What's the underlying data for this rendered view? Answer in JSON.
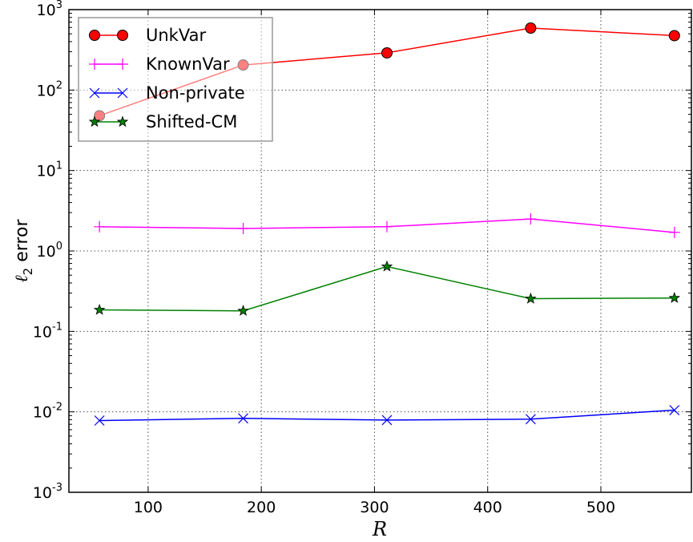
{
  "chart_data": {
    "type": "line",
    "xlabel": "R",
    "ylabel_main": "ℓ",
    "ylabel_sub": "2",
    "ylabel_rest": " error",
    "yscale": "log",
    "xlim": [
      30,
      580
    ],
    "ylim": [
      0.001,
      1000
    ],
    "xticks": [
      100,
      200,
      300,
      400,
      500
    ],
    "xtick_labels": [
      "100",
      "200",
      "300",
      "400",
      "500"
    ],
    "yticks": [
      {
        "value": 0.001,
        "base": "10",
        "exp": "-3"
      },
      {
        "value": 0.01,
        "base": "10",
        "exp": "-2"
      },
      {
        "value": 0.1,
        "base": "10",
        "exp": "-1"
      },
      {
        "value": 1,
        "base": "10",
        "exp": "0"
      },
      {
        "value": 10,
        "base": "10",
        "exp": "1"
      },
      {
        "value": 100,
        "base": "10",
        "exp": "2"
      },
      {
        "value": 1000,
        "base": "10",
        "exp": "3"
      }
    ],
    "grid": true,
    "legend_position": "top-left",
    "x": [
      57,
      184,
      311,
      438,
      565
    ],
    "series": [
      {
        "name": "UnkVar",
        "color": "#ff0000",
        "marker": "circle",
        "values": [
          48,
          205,
          290,
          590,
          475
        ]
      },
      {
        "name": "KnownVar",
        "color": "#ff00ff",
        "marker": "plus",
        "values": [
          2.0,
          1.9,
          2.0,
          2.5,
          1.7
        ]
      },
      {
        "name": "Non-private",
        "color": "#0000ff",
        "marker": "x",
        "values": [
          0.0078,
          0.0083,
          0.0079,
          0.0081,
          0.0105
        ]
      },
      {
        "name": "Shifted-CM",
        "color": "#008000",
        "marker": "star",
        "values": [
          0.185,
          0.18,
          0.64,
          0.255,
          0.26
        ]
      }
    ]
  }
}
